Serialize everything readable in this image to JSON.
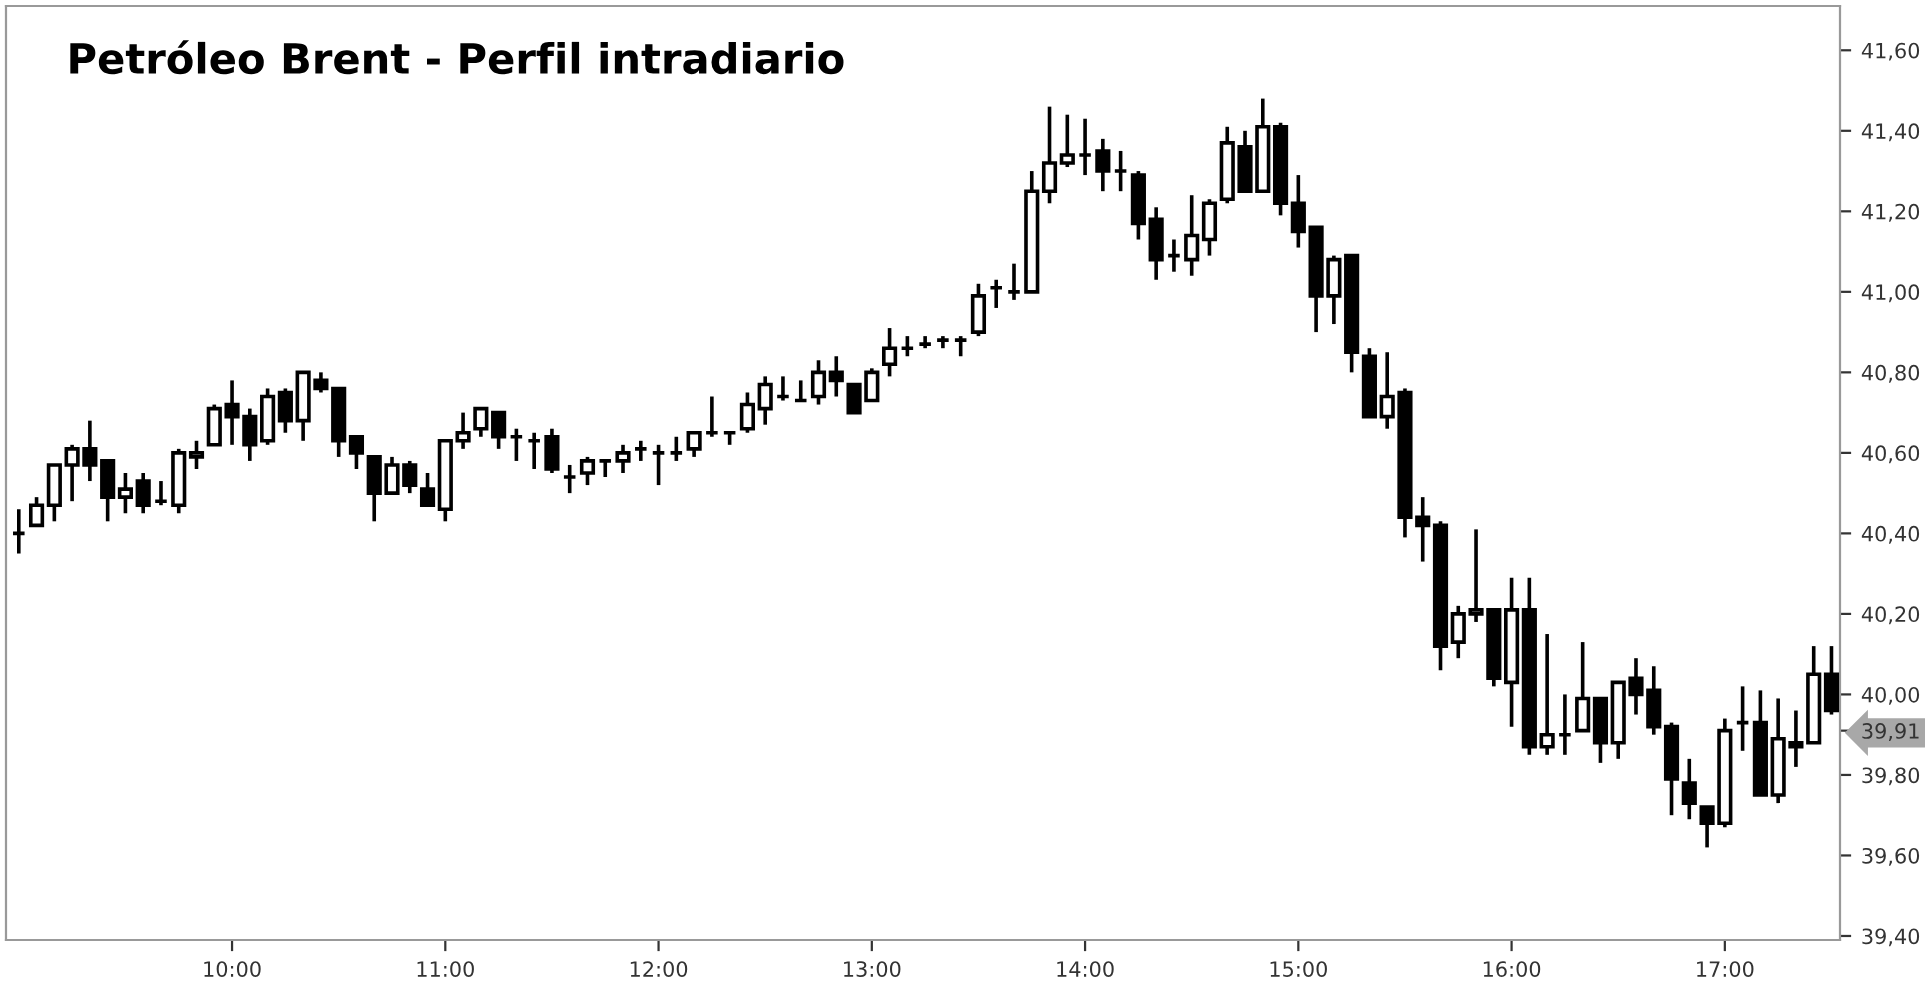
{
  "chart_data": {
    "type": "candlestick",
    "title": "Petróleo Brent - Perfil intradiario",
    "x": [
      9,
      9.0833,
      9.1667,
      9.25,
      9.3333,
      9.4167,
      9.5,
      9.5833,
      9.6667,
      9.75,
      9.8333,
      9.9167,
      10,
      10.0833,
      10.1667,
      10.25,
      10.3333,
      10.4167,
      10.5,
      10.5833,
      10.6667,
      10.75,
      10.8333,
      10.9167,
      11,
      11.0833,
      11.1667,
      11.25,
      11.3333,
      11.4167,
      11.5,
      11.5833,
      11.6667,
      11.75,
      11.8333,
      11.9167,
      12,
      12.0833,
      12.1667,
      12.25,
      12.3333,
      12.4167,
      12.5,
      12.5833,
      12.6667,
      12.75,
      12.8333,
      12.9167,
      13,
      13.0833,
      13.1667,
      13.25,
      13.3333,
      13.4167,
      13.5,
      13.5833,
      13.6667,
      13.75,
      13.8333,
      13.9167,
      14,
      14.0833,
      14.1667,
      14.25,
      14.3333,
      14.4167,
      14.5,
      14.5833,
      14.6667,
      14.75,
      14.8333,
      14.9167,
      15,
      15.0833,
      15.1667,
      15.25,
      15.3333,
      15.4167,
      15.5,
      15.5833,
      15.6667,
      15.75,
      15.8333,
      15.9167,
      16,
      16.0833,
      16.1667,
      16.25,
      16.3333,
      16.4167,
      16.5,
      16.5833,
      16.6667,
      16.75,
      16.8333,
      16.9167,
      17,
      17.0833,
      17.1667,
      17.25,
      17.3333,
      17.4167,
      17.5
    ],
    "ohlc": [
      [
        40.4,
        40.46,
        40.35,
        40.4
      ],
      [
        40.42,
        40.49,
        40.42,
        40.47
      ],
      [
        40.47,
        40.57,
        40.43,
        40.57
      ],
      [
        40.57,
        40.62,
        40.48,
        40.61
      ],
      [
        40.61,
        40.68,
        40.53,
        40.57
      ],
      [
        40.58,
        40.58,
        40.43,
        40.49
      ],
      [
        40.49,
        40.55,
        40.45,
        40.51
      ],
      [
        40.53,
        40.55,
        40.45,
        40.47
      ],
      [
        40.48,
        40.53,
        40.47,
        40.48
      ],
      [
        40.47,
        40.61,
        40.45,
        40.6
      ],
      [
        40.59,
        40.63,
        40.56,
        40.6
      ],
      [
        40.62,
        40.72,
        40.62,
        40.71
      ],
      [
        40.72,
        40.78,
        40.62,
        40.69
      ],
      [
        40.69,
        40.71,
        40.58,
        40.62
      ],
      [
        40.63,
        40.76,
        40.62,
        40.74
      ],
      [
        40.75,
        40.76,
        40.65,
        40.68
      ],
      [
        40.68,
        40.8,
        40.63,
        40.8
      ],
      [
        40.78,
        40.8,
        40.75,
        40.76
      ],
      [
        40.76,
        40.76,
        40.59,
        40.63
      ],
      [
        40.64,
        40.64,
        40.56,
        40.6
      ],
      [
        40.59,
        40.59,
        40.43,
        40.5
      ],
      [
        40.5,
        40.59,
        40.5,
        40.57
      ],
      [
        40.57,
        40.58,
        40.5,
        40.52
      ],
      [
        40.51,
        40.55,
        40.47,
        40.47
      ],
      [
        40.46,
        40.63,
        40.43,
        40.63
      ],
      [
        40.63,
        40.7,
        40.61,
        40.65
      ],
      [
        40.66,
        40.71,
        40.64,
        40.71
      ],
      [
        40.7,
        40.7,
        40.61,
        40.64
      ],
      [
        40.64,
        40.66,
        40.58,
        40.64
      ],
      [
        40.63,
        40.65,
        40.56,
        40.63
      ],
      [
        40.64,
        40.66,
        40.55,
        40.56
      ],
      [
        40.54,
        40.57,
        40.5,
        40.54
      ],
      [
        40.55,
        40.59,
        40.52,
        40.58
      ],
      [
        40.58,
        40.58,
        40.54,
        40.58
      ],
      [
        40.58,
        40.62,
        40.55,
        40.6
      ],
      [
        40.61,
        40.63,
        40.58,
        40.61
      ],
      [
        40.6,
        40.62,
        40.52,
        40.6
      ],
      [
        40.6,
        40.64,
        40.58,
        40.6
      ],
      [
        40.61,
        40.65,
        40.59,
        40.65
      ],
      [
        40.65,
        40.74,
        40.64,
        40.65
      ],
      [
        40.65,
        40.65,
        40.62,
        40.65
      ],
      [
        40.66,
        40.75,
        40.65,
        40.72
      ],
      [
        40.71,
        40.79,
        40.67,
        40.77
      ],
      [
        40.74,
        40.79,
        40.73,
        40.74
      ],
      [
        40.73,
        40.78,
        40.73,
        40.73
      ],
      [
        40.74,
        40.83,
        40.72,
        40.8
      ],
      [
        40.8,
        40.84,
        40.74,
        40.78
      ],
      [
        40.77,
        40.77,
        40.7,
        40.7
      ],
      [
        40.73,
        40.81,
        40.73,
        40.8
      ],
      [
        40.82,
        40.91,
        40.79,
        40.86
      ],
      [
        40.86,
        40.89,
        40.84,
        40.86
      ],
      [
        40.87,
        40.89,
        40.86,
        40.87
      ],
      [
        40.88,
        40.89,
        40.86,
        40.88
      ],
      [
        40.88,
        40.89,
        40.84,
        40.88
      ],
      [
        40.9,
        41.02,
        40.89,
        40.99
      ],
      [
        41.01,
        41.03,
        40.96,
        41.01
      ],
      [
        41.0,
        41.07,
        40.98,
        41.0
      ],
      [
        41.0,
        41.3,
        41.0,
        41.25
      ],
      [
        41.25,
        41.46,
        41.22,
        41.32
      ],
      [
        41.32,
        41.44,
        41.31,
        41.34
      ],
      [
        41.34,
        41.43,
        41.29,
        41.34
      ],
      [
        41.35,
        41.38,
        41.25,
        41.3
      ],
      [
        41.3,
        41.35,
        41.25,
        41.3
      ],
      [
        41.29,
        41.3,
        41.13,
        41.17
      ],
      [
        41.18,
        41.21,
        41.03,
        41.08
      ],
      [
        41.09,
        41.13,
        41.05,
        41.09
      ],
      [
        41.08,
        41.24,
        41.04,
        41.14
      ],
      [
        41.13,
        41.23,
        41.09,
        41.22
      ],
      [
        41.23,
        41.41,
        41.22,
        41.37
      ],
      [
        41.36,
        41.4,
        41.25,
        41.25
      ],
      [
        41.25,
        41.48,
        41.25,
        41.41
      ],
      [
        41.41,
        41.42,
        41.19,
        41.22
      ],
      [
        41.22,
        41.29,
        41.11,
        41.15
      ],
      [
        41.16,
        41.16,
        40.9,
        40.99
      ],
      [
        40.99,
        41.09,
        40.92,
        41.08
      ],
      [
        41.09,
        41.09,
        40.8,
        40.85
      ],
      [
        40.84,
        40.86,
        40.69,
        40.69
      ],
      [
        40.69,
        40.85,
        40.66,
        40.74
      ],
      [
        40.75,
        40.76,
        40.39,
        40.44
      ],
      [
        40.44,
        40.49,
        40.33,
        40.42
      ],
      [
        40.42,
        40.43,
        40.06,
        40.12
      ],
      [
        40.13,
        40.22,
        40.09,
        40.2
      ],
      [
        40.2,
        40.41,
        40.18,
        40.21
      ],
      [
        40.21,
        40.21,
        40.02,
        40.04
      ],
      [
        40.03,
        40.29,
        39.92,
        40.21
      ],
      [
        40.21,
        40.29,
        39.85,
        39.87
      ],
      [
        39.87,
        40.15,
        39.85,
        39.9
      ],
      [
        39.9,
        40.0,
        39.85,
        39.9
      ],
      [
        39.91,
        40.13,
        39.91,
        39.99
      ],
      [
        39.99,
        39.99,
        39.83,
        39.88
      ],
      [
        39.88,
        40.03,
        39.84,
        40.03
      ],
      [
        40.04,
        40.09,
        39.95,
        40.0
      ],
      [
        40.01,
        40.07,
        39.9,
        39.92
      ],
      [
        39.92,
        39.93,
        39.7,
        39.79
      ],
      [
        39.78,
        39.84,
        39.69,
        39.73
      ],
      [
        39.72,
        39.72,
        39.62,
        39.68
      ],
      [
        39.68,
        39.94,
        39.67,
        39.91
      ],
      [
        39.93,
        40.02,
        39.86,
        39.93
      ],
      [
        39.93,
        40.01,
        39.75,
        39.75
      ],
      [
        39.75,
        39.99,
        39.73,
        39.89
      ],
      [
        39.88,
        39.96,
        39.82,
        39.87
      ],
      [
        39.88,
        40.12,
        39.88,
        40.05
      ],
      [
        40.05,
        40.12,
        39.95,
        39.96
      ]
    ],
    "color": "#000000",
    "xlim": [
      8.94,
      17.54
    ],
    "xticks": [
      {
        "value": 10,
        "label": "10:00"
      },
      {
        "value": 11,
        "label": "11:00"
      },
      {
        "value": 12,
        "label": "12:00"
      },
      {
        "value": 13,
        "label": "13:00"
      },
      {
        "value": 14,
        "label": "14:00"
      },
      {
        "value": 15,
        "label": "15:00"
      },
      {
        "value": 16,
        "label": "16:00"
      },
      {
        "value": 17,
        "label": "17:00"
      }
    ],
    "ylim": [
      39.39,
      41.71
    ],
    "yticks": [
      {
        "value": 39.4,
        "label": "39,40"
      },
      {
        "value": 39.6,
        "label": "39,60"
      },
      {
        "value": 39.8,
        "label": "39,80"
      },
      {
        "value": 39.91,
        "label": "39,91"
      },
      {
        "value": 40.0,
        "label": "40,00"
      },
      {
        "value": 40.2,
        "label": "40,20"
      },
      {
        "value": 40.4,
        "label": "40,40"
      },
      {
        "value": 40.6,
        "label": "40,60"
      },
      {
        "value": 40.8,
        "label": "40,80"
      },
      {
        "value": 41.0,
        "label": "41,00"
      },
      {
        "value": 41.2,
        "label": "41,20"
      },
      {
        "value": 41.4,
        "label": "41,40"
      },
      {
        "value": 41.6,
        "label": "41,60"
      }
    ],
    "grid": false,
    "legend": false
  }
}
